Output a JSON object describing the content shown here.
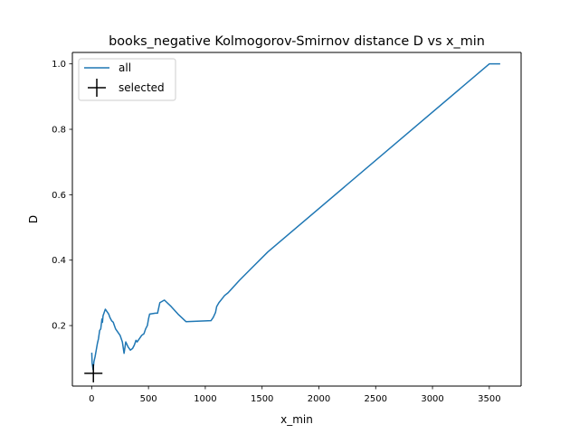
{
  "chart_data": {
    "type": "line",
    "title": "books_negative Kolmogorov-Smirnov distance D vs x_min",
    "xlabel": "x_min",
    "ylabel": "D",
    "xlim": [
      -170,
      3780
    ],
    "ylim": [
      0.015,
      1.035
    ],
    "xticks": [
      0,
      500,
      1000,
      1500,
      2000,
      2500,
      3000,
      3500
    ],
    "yticks": [
      0.2,
      0.4,
      0.6,
      0.8,
      1.0
    ],
    "xtick_labels": [
      "0",
      "500",
      "1000",
      "1500",
      "2000",
      "2500",
      "3000",
      "3500"
    ],
    "ytick_labels": [
      "0.2",
      "0.4",
      "0.6",
      "0.8",
      "1.0"
    ],
    "grid": false,
    "legend_position": "upper-left",
    "series": [
      {
        "name": "all",
        "color": "#1f77b4",
        "style": "line",
        "x": [
          1,
          4,
          8,
          12,
          20,
          30,
          40,
          50,
          60,
          70,
          80,
          90,
          95,
          100,
          110,
          120,
          130,
          140,
          150,
          160,
          175,
          190,
          200,
          210,
          230,
          250,
          270,
          285,
          300,
          320,
          340,
          360,
          375,
          390,
          400,
          420,
          440,
          460,
          475,
          490,
          500,
          510,
          560,
          580,
          600,
          640,
          700,
          760,
          830,
          1050,
          1070,
          1090,
          1100,
          1120,
          1150,
          1170,
          1200,
          1300,
          1400,
          1550,
          3500,
          3590
        ],
        "y": [
          0.115,
          0.085,
          0.075,
          0.065,
          0.09,
          0.105,
          0.125,
          0.145,
          0.16,
          0.185,
          0.19,
          0.22,
          0.21,
          0.23,
          0.24,
          0.25,
          0.245,
          0.24,
          0.235,
          0.225,
          0.215,
          0.21,
          0.2,
          0.19,
          0.18,
          0.17,
          0.15,
          0.115,
          0.15,
          0.135,
          0.125,
          0.13,
          0.14,
          0.155,
          0.15,
          0.16,
          0.17,
          0.175,
          0.19,
          0.2,
          0.22,
          0.235,
          0.238,
          0.238,
          0.27,
          0.278,
          0.258,
          0.235,
          0.212,
          0.215,
          0.225,
          0.24,
          0.258,
          0.27,
          0.283,
          0.292,
          0.3,
          0.338,
          0.373,
          0.425,
          1.0,
          1.0
        ]
      },
      {
        "name": "selected",
        "color": "#000000",
        "style": "marker",
        "marker": "+",
        "x": [
          15
        ],
        "y": [
          0.054
        ]
      }
    ]
  }
}
